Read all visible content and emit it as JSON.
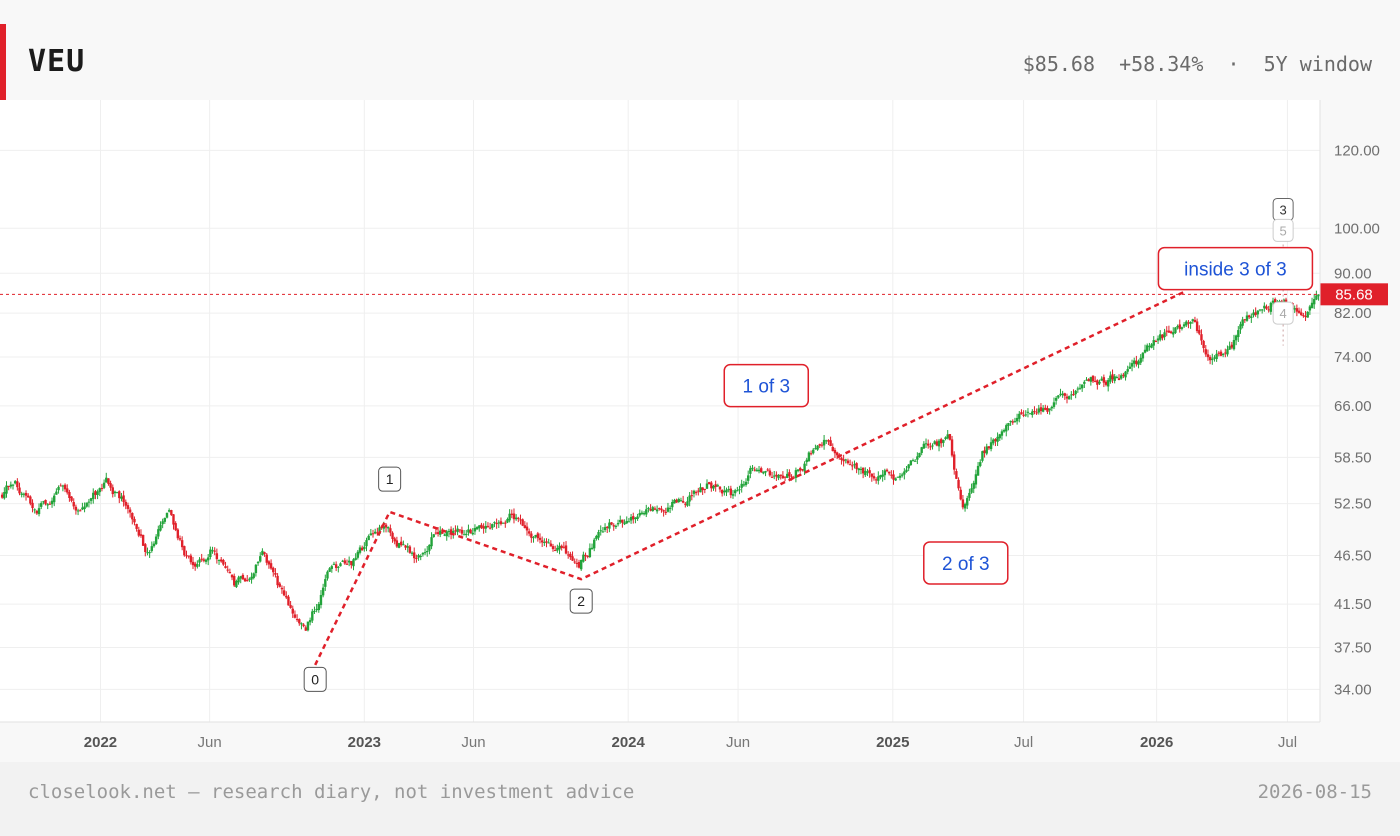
{
  "header": {
    "ticker": "VEU",
    "price": "$85.68",
    "change": "+58.34%",
    "separator": "·",
    "window": "5Y window"
  },
  "footer": {
    "note": "closelook.net — research diary, not investment advice",
    "date": "2026-08-15"
  },
  "colors": {
    "up": "#22a33a",
    "down": "#e0202a",
    "annotation": "#e0202a",
    "annotation_text": "#1f54d6",
    "price_line": "#e0202a"
  },
  "chart_data": {
    "type": "candlestick",
    "scale": "log",
    "ylim": [
      31.5,
      135
    ],
    "y_ticks": [
      "120.00",
      "100.00",
      "90.00",
      "82.00",
      "74.00",
      "66.00",
      "58.50",
      "52.50",
      "46.50",
      "41.50",
      "37.50",
      "34.00"
    ],
    "x_ticks": [
      {
        "label": "2022",
        "date": "2022-01-01",
        "bold": true
      },
      {
        "label": "Jun",
        "date": "2022-06-01",
        "bold": false
      },
      {
        "label": "2023",
        "date": "2023-01-01",
        "bold": true
      },
      {
        "label": "Jun",
        "date": "2023-06-01",
        "bold": false
      },
      {
        "label": "2024",
        "date": "2024-01-01",
        "bold": true
      },
      {
        "label": "Jun",
        "date": "2024-06-01",
        "bold": false
      },
      {
        "label": "2025",
        "date": "2025-01-01",
        "bold": true
      },
      {
        "label": "Jul",
        "date": "2025-07-01",
        "bold": false
      },
      {
        "label": "2026",
        "date": "2026-01-01",
        "bold": true
      },
      {
        "label": "Jul",
        "date": "2026-07-01",
        "bold": false
      }
    ],
    "xlim": [
      "2021-08-15",
      "2026-08-15"
    ],
    "last_price": 85.68,
    "last_price_label": "85.68",
    "price_path": [
      [
        "2021-08-15",
        53.5
      ],
      [
        "2021-09-05",
        55.5
      ],
      [
        "2021-10-05",
        51.5
      ],
      [
        "2021-11-10",
        55.0
      ],
      [
        "2021-12-05",
        51.5
      ],
      [
        "2022-01-10",
        55.0
      ],
      [
        "2022-02-10",
        52.0
      ],
      [
        "2022-03-08",
        46.5
      ],
      [
        "2022-04-05",
        51.0
      ],
      [
        "2022-05-10",
        45.0
      ],
      [
        "2022-06-05",
        47.5
      ],
      [
        "2022-07-05",
        42.8
      ],
      [
        "2022-08-15",
        46.5
      ],
      [
        "2022-09-15",
        41.5
      ],
      [
        "2022-10-12",
        39.0
      ],
      [
        "2022-11-15",
        45.0
      ],
      [
        "2022-12-15",
        45.5
      ],
      [
        "2023-01-25",
        50.0
      ],
      [
        "2023-03-15",
        46.0
      ],
      [
        "2023-04-15",
        49.5
      ],
      [
        "2023-06-01",
        49.0
      ],
      [
        "2023-07-25",
        51.5
      ],
      [
        "2023-08-25",
        49.0
      ],
      [
        "2023-10-25",
        45.5
      ],
      [
        "2023-12-01",
        50.0
      ],
      [
        "2024-01-15",
        51.0
      ],
      [
        "2024-03-10",
        53.0
      ],
      [
        "2024-04-20",
        55.0
      ],
      [
        "2024-05-25",
        53.5
      ],
      [
        "2024-06-20",
        57.0
      ],
      [
        "2024-08-05",
        55.0
      ],
      [
        "2024-09-26",
        61.0
      ],
      [
        "2024-11-05",
        57.0
      ],
      [
        "2024-12-10",
        56.5
      ],
      [
        "2025-01-10",
        56.0
      ],
      [
        "2025-02-10",
        60.0
      ],
      [
        "2025-03-20",
        61.0
      ],
      [
        "2025-04-08",
        51.8
      ],
      [
        "2025-05-05",
        59.0
      ],
      [
        "2025-06-15",
        63.5
      ],
      [
        "2025-08-15",
        66.5
      ],
      [
        "2025-10-01",
        70.0
      ],
      [
        "2025-11-20",
        71.0
      ],
      [
        "2026-01-15",
        78.0
      ],
      [
        "2026-02-20",
        81.5
      ],
      [
        "2026-03-12",
        75.0
      ],
      [
        "2026-04-07",
        73.5
      ],
      [
        "2026-05-05",
        81.0
      ],
      [
        "2026-06-12",
        84.5
      ],
      [
        "2026-07-05",
        83.0
      ],
      [
        "2026-07-20",
        82.0
      ],
      [
        "2026-08-15",
        85.68
      ]
    ],
    "wave_path": [
      [
        "2022-10-25",
        36.0
      ],
      [
        "2023-02-05",
        51.5
      ],
      [
        "2023-10-28",
        44.0
      ],
      [
        "2026-02-10",
        86.3
      ]
    ],
    "wave_labels": [
      {
        "label": "0",
        "date": "2022-10-25",
        "price": 34.8,
        "position": "below"
      },
      {
        "label": "1",
        "date": "2023-02-05",
        "price": 55.6,
        "position": "above"
      },
      {
        "label": "2",
        "date": "2023-10-28",
        "price": 41.8,
        "position": "below"
      }
    ],
    "sub_wave": {
      "labels": [
        "3",
        "5",
        "4"
      ],
      "label_prices": [
        104.5,
        99.5,
        82.0
      ],
      "date": "2026-06-25"
    },
    "annotations": [
      {
        "text": "1 of 3",
        "date": "2024-07-10",
        "price": 69.2
      },
      {
        "text": "2 of 3",
        "date": "2025-04-12",
        "price": 45.7
      },
      {
        "text": "inside 3 of 3",
        "date": "2026-04-20",
        "price": 91.0
      }
    ]
  }
}
